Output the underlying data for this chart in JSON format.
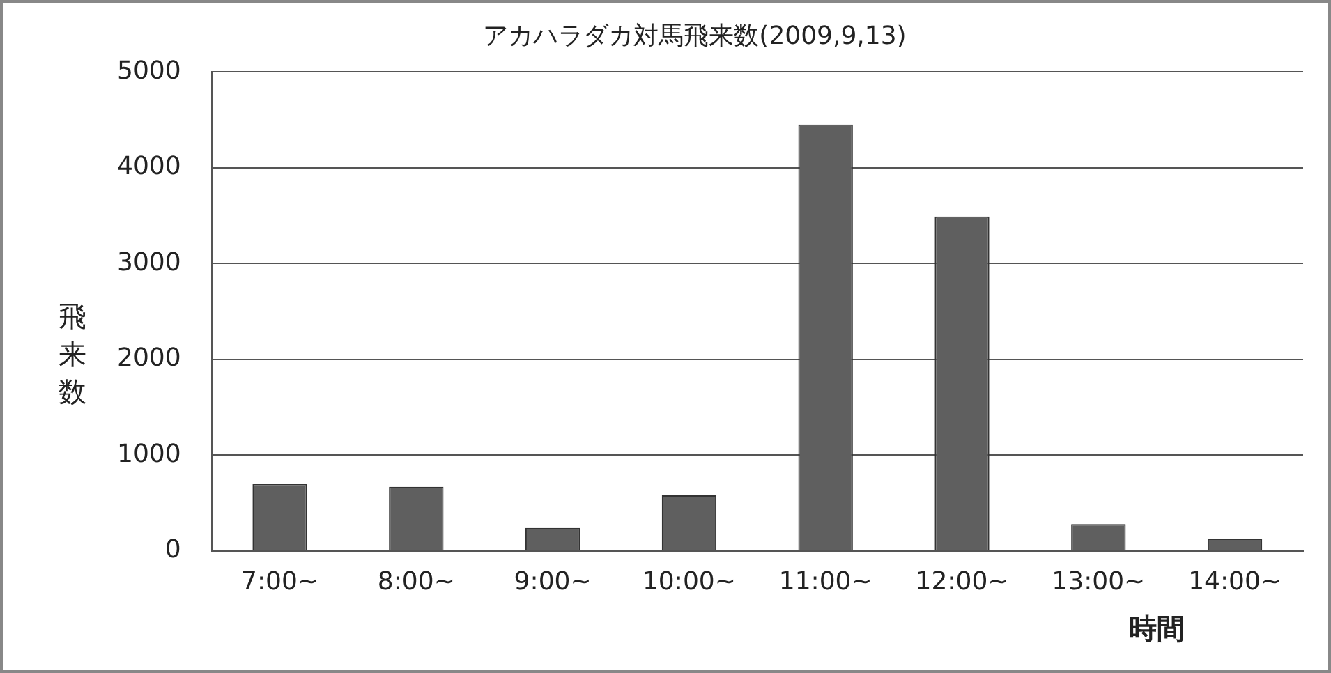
{
  "chart_data": {
    "type": "bar",
    "title": "アカハラダカ対馬飛来数(2009,9,13)",
    "xlabel": "時間",
    "ylabel": "飛来数",
    "categories": [
      "7:00~",
      "8:00~",
      "9:00~",
      "10:00~",
      "11:00~",
      "12:00~",
      "13:00~",
      "14:00~"
    ],
    "values": [
      700,
      670,
      240,
      580,
      4450,
      3490,
      280,
      130
    ],
    "color": "#5f5f5f",
    "ylim": [
      0,
      5000
    ],
    "yticks": [
      0,
      1000,
      2000,
      3000,
      4000,
      5000
    ],
    "grid": "y",
    "legend": false
  }
}
